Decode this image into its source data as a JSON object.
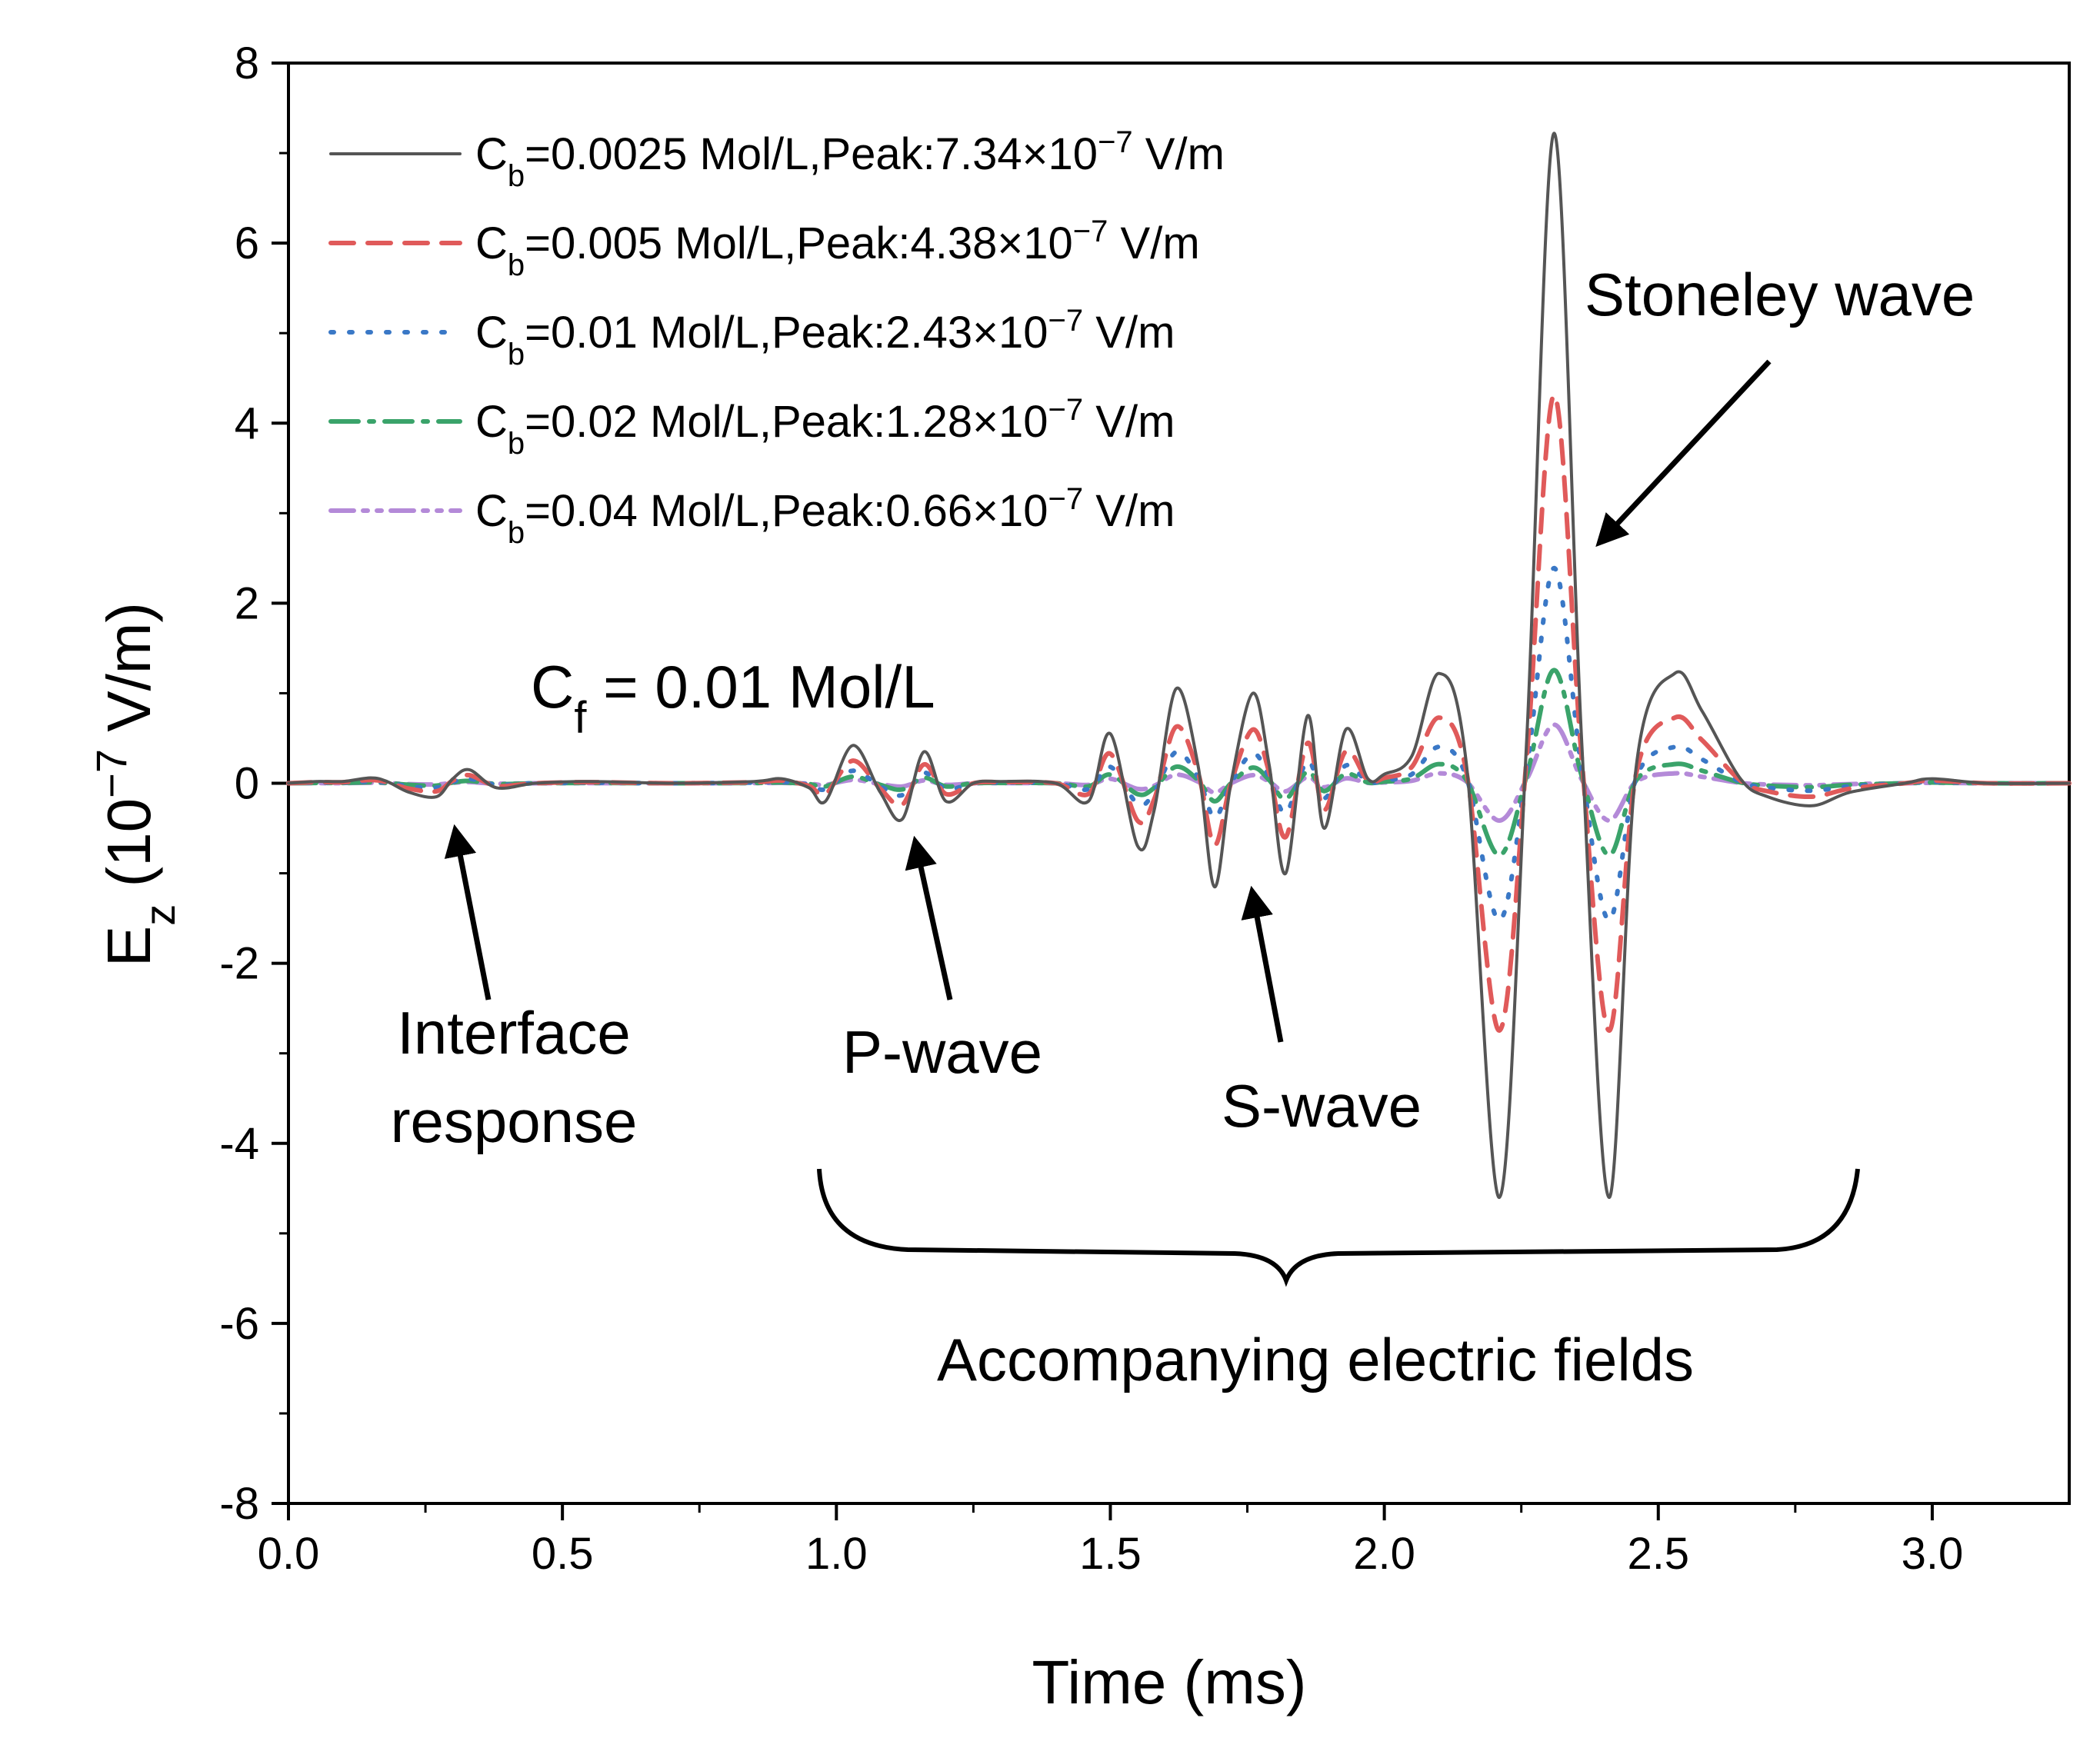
{
  "chart_data": {
    "type": "line",
    "title": "",
    "xlabel": "Time (ms)",
    "ylabel": {
      "main": "E",
      "sub": "z",
      "unit_pre": " (10",
      "unit_exp": "−7",
      "unit_post": " V/m)"
    },
    "xlim": [
      0,
      3.25
    ],
    "ylim": [
      -8,
      8
    ],
    "x_ticks": [
      0.0,
      0.5,
      1.0,
      1.5,
      2.0,
      2.5,
      3.0
    ],
    "x_tick_labels": [
      "0.0",
      "0.5",
      "1.0",
      "1.5",
      "2.0",
      "2.5",
      "3.0"
    ],
    "y_ticks": [
      -8,
      -6,
      -4,
      -2,
      0,
      2,
      4,
      6,
      8
    ],
    "y_tick_labels": [
      "-8",
      "-6",
      "-4",
      "-2",
      "0",
      "2",
      "4",
      "6",
      "8"
    ],
    "grid": false,
    "legend_position": "top-left",
    "series": [
      {
        "name": "Cb=0.0025 Mol/L,Peak:7.34×10−7 V/m",
        "label_pre": "C",
        "label_sub": "b",
        "label_mid": "=0.0025 Mol/L,Peak:7.34×10",
        "label_exp": "−7",
        "label_post": " V/m",
        "color": "#555555",
        "dash": "solid",
        "scale": 1.0
      },
      {
        "name": "Cb=0.005 Mol/L,Peak:4.38×10−7 V/m",
        "label_pre": "C",
        "label_sub": "b",
        "label_mid": "=0.005 Mol/L,Peak:4.38×10",
        "label_exp": "−7",
        "label_post": " V/m",
        "color": "#e05a5a",
        "dash": "dash",
        "scale": 0.597
      },
      {
        "name": "Cb=0.01 Mol/L,Peak:2.43×10−7 V/m",
        "label_pre": "C",
        "label_sub": "b",
        "label_mid": "=0.01 Mol/L,Peak:2.43×10",
        "label_exp": "−7",
        "label_post": " V/m",
        "color": "#3a78c6",
        "dash": "dot",
        "scale": 0.331
      },
      {
        "name": "Cb=0.02 Mol/L,Peak:1.28×10−7 V/m",
        "label_pre": "C",
        "label_sub": "b",
        "label_mid": "=0.02 Mol/L,Peak:1.28×10",
        "label_exp": "−7",
        "label_post": " V/m",
        "color": "#3aa36a",
        "dash": "dashdot",
        "scale": 0.174
      },
      {
        "name": "Cb=0.04 Mol/L,Peak:0.66×10−7 V/m",
        "label_pre": "C",
        "label_sub": "b",
        "label_mid": "=0.04 Mol/L,Peak:0.66×10",
        "label_exp": "−7",
        "label_post": " V/m",
        "color": "#b48ad8",
        "dash": "dashdotdot",
        "scale": 0.09
      }
    ],
    "base_waveform": {
      "x": [
        0.0,
        0.05,
        0.1,
        0.15,
        0.18,
        0.22,
        0.27,
        0.3,
        0.33,
        0.38,
        0.45,
        0.55,
        0.7,
        0.85,
        0.9,
        0.95,
        0.98,
        1.03,
        1.08,
        1.12,
        1.16,
        1.2,
        1.25,
        1.3,
        1.4,
        1.46,
        1.5,
        1.55,
        1.58,
        1.62,
        1.66,
        1.69,
        1.72,
        1.76,
        1.79,
        1.82,
        1.86,
        1.89,
        1.93,
        1.97,
        2.0,
        2.05,
        2.1,
        2.15,
        2.21,
        2.26,
        2.31,
        2.36,
        2.41,
        2.46,
        2.53,
        2.58,
        2.65,
        2.7,
        2.78,
        2.85,
        2.95,
        3.0,
        3.1,
        3.25
      ],
      "y": [
        0,
        0.02,
        0.02,
        0.06,
        0.02,
        -0.1,
        -0.15,
        0.05,
        0.15,
        -0.05,
        0.0,
        0.02,
        0.0,
        0.02,
        0.05,
        -0.05,
        -0.2,
        0.42,
        -0.1,
        -0.4,
        0.35,
        -0.2,
        0.0,
        0.02,
        0.0,
        -0.2,
        0.55,
        -0.7,
        -0.3,
        1.05,
        0.2,
        -1.15,
        0.0,
        1.0,
        0.2,
        -1.0,
        0.75,
        -0.5,
        0.6,
        0.05,
        0.1,
        0.3,
        1.22,
        0.2,
        -4.6,
        0.5,
        7.22,
        0.5,
        -4.6,
        0.2,
        1.22,
        0.8,
        0.05,
        -0.15,
        -0.25,
        -0.1,
        0.0,
        0.05,
        0.0,
        0.0
      ]
    },
    "annotations": {
      "cf_pre": "C",
      "cf_sub": "f",
      "cf_post": " = 0.01 Mol/L",
      "stoneley": "Stoneley wave",
      "interface_1": "Interface",
      "interface_2": "response",
      "p_wave": "P-wave",
      "s_wave": "S-wave",
      "accompanying": "Accompanying electric fields"
    }
  }
}
